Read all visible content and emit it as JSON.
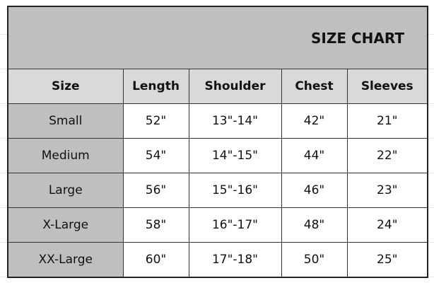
{
  "title": "SIZE CHART",
  "headers": [
    "Size",
    "Length",
    "Shoulder",
    "Chest",
    "Sleeves"
  ],
  "rows": [
    [
      "Small",
      "52\"",
      "13\"-14\"",
      "42\"",
      "21\""
    ],
    [
      "Medium",
      "54\"",
      "14\"-15\"",
      "44\"",
      "22\""
    ],
    [
      "Large",
      "56\"",
      "15\"-16\"",
      "46\"",
      "23\""
    ],
    [
      "X-Large",
      "58\"",
      "16\"-17\"",
      "48\"",
      "24\""
    ],
    [
      "XX-Large",
      "60\"",
      "17\"-18\"",
      "50\"",
      "25\""
    ]
  ]
}
